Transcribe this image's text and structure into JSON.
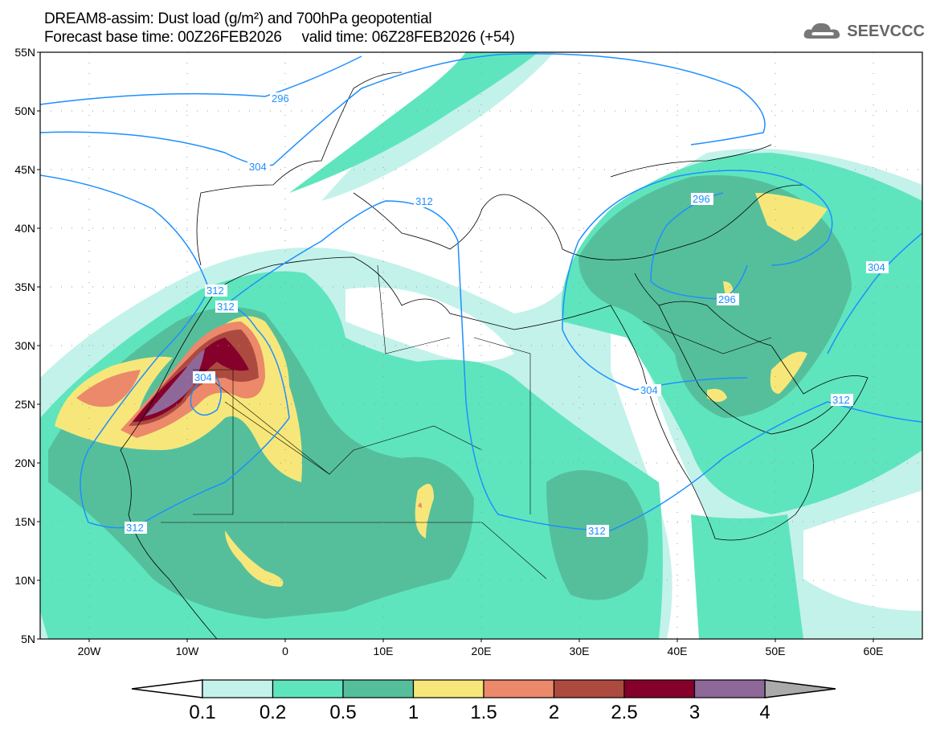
{
  "header": {
    "title": "DREAM8-assim: Dust load (g/m²) and 700hPa geopotential",
    "subtitle": "Forecast base time: 00Z26FEB2026     valid time: 06Z28FEB2026 (+54)",
    "logo_text": "SEEVCCC",
    "logo_icon": "cloud-icon"
  },
  "map": {
    "lon_range": [
      -25,
      65
    ],
    "lat_range": [
      5,
      55
    ],
    "lat_labels": [
      "55N",
      "50N",
      "45N",
      "40N",
      "35N",
      "30N",
      "25N",
      "20N",
      "15N",
      "10N",
      "5N"
    ],
    "lon_labels": [
      "20W",
      "10W",
      "0",
      "10E",
      "20E",
      "30E",
      "40E",
      "50E",
      "60E"
    ],
    "contour_labels": [
      "296",
      "304",
      "312",
      "312",
      "312",
      "312",
      "304",
      "296",
      "296",
      "304",
      "312",
      "312",
      "304"
    ]
  },
  "colorbar": {
    "ticks": [
      "0.1",
      "0.2",
      "0.5",
      "1",
      "1.5",
      "2",
      "2.5",
      "3",
      "4"
    ],
    "colors": [
      "#c3f2ea",
      "#5fe5bd",
      "#55bf9c",
      "#f7e77a",
      "#ec896a",
      "#ad4a40",
      "#86002c",
      "#8e6899"
    ],
    "over_color": "#aaaaaa",
    "under_color": "#ffffff"
  },
  "colors": {
    "contour": "#1e8fff"
  }
}
